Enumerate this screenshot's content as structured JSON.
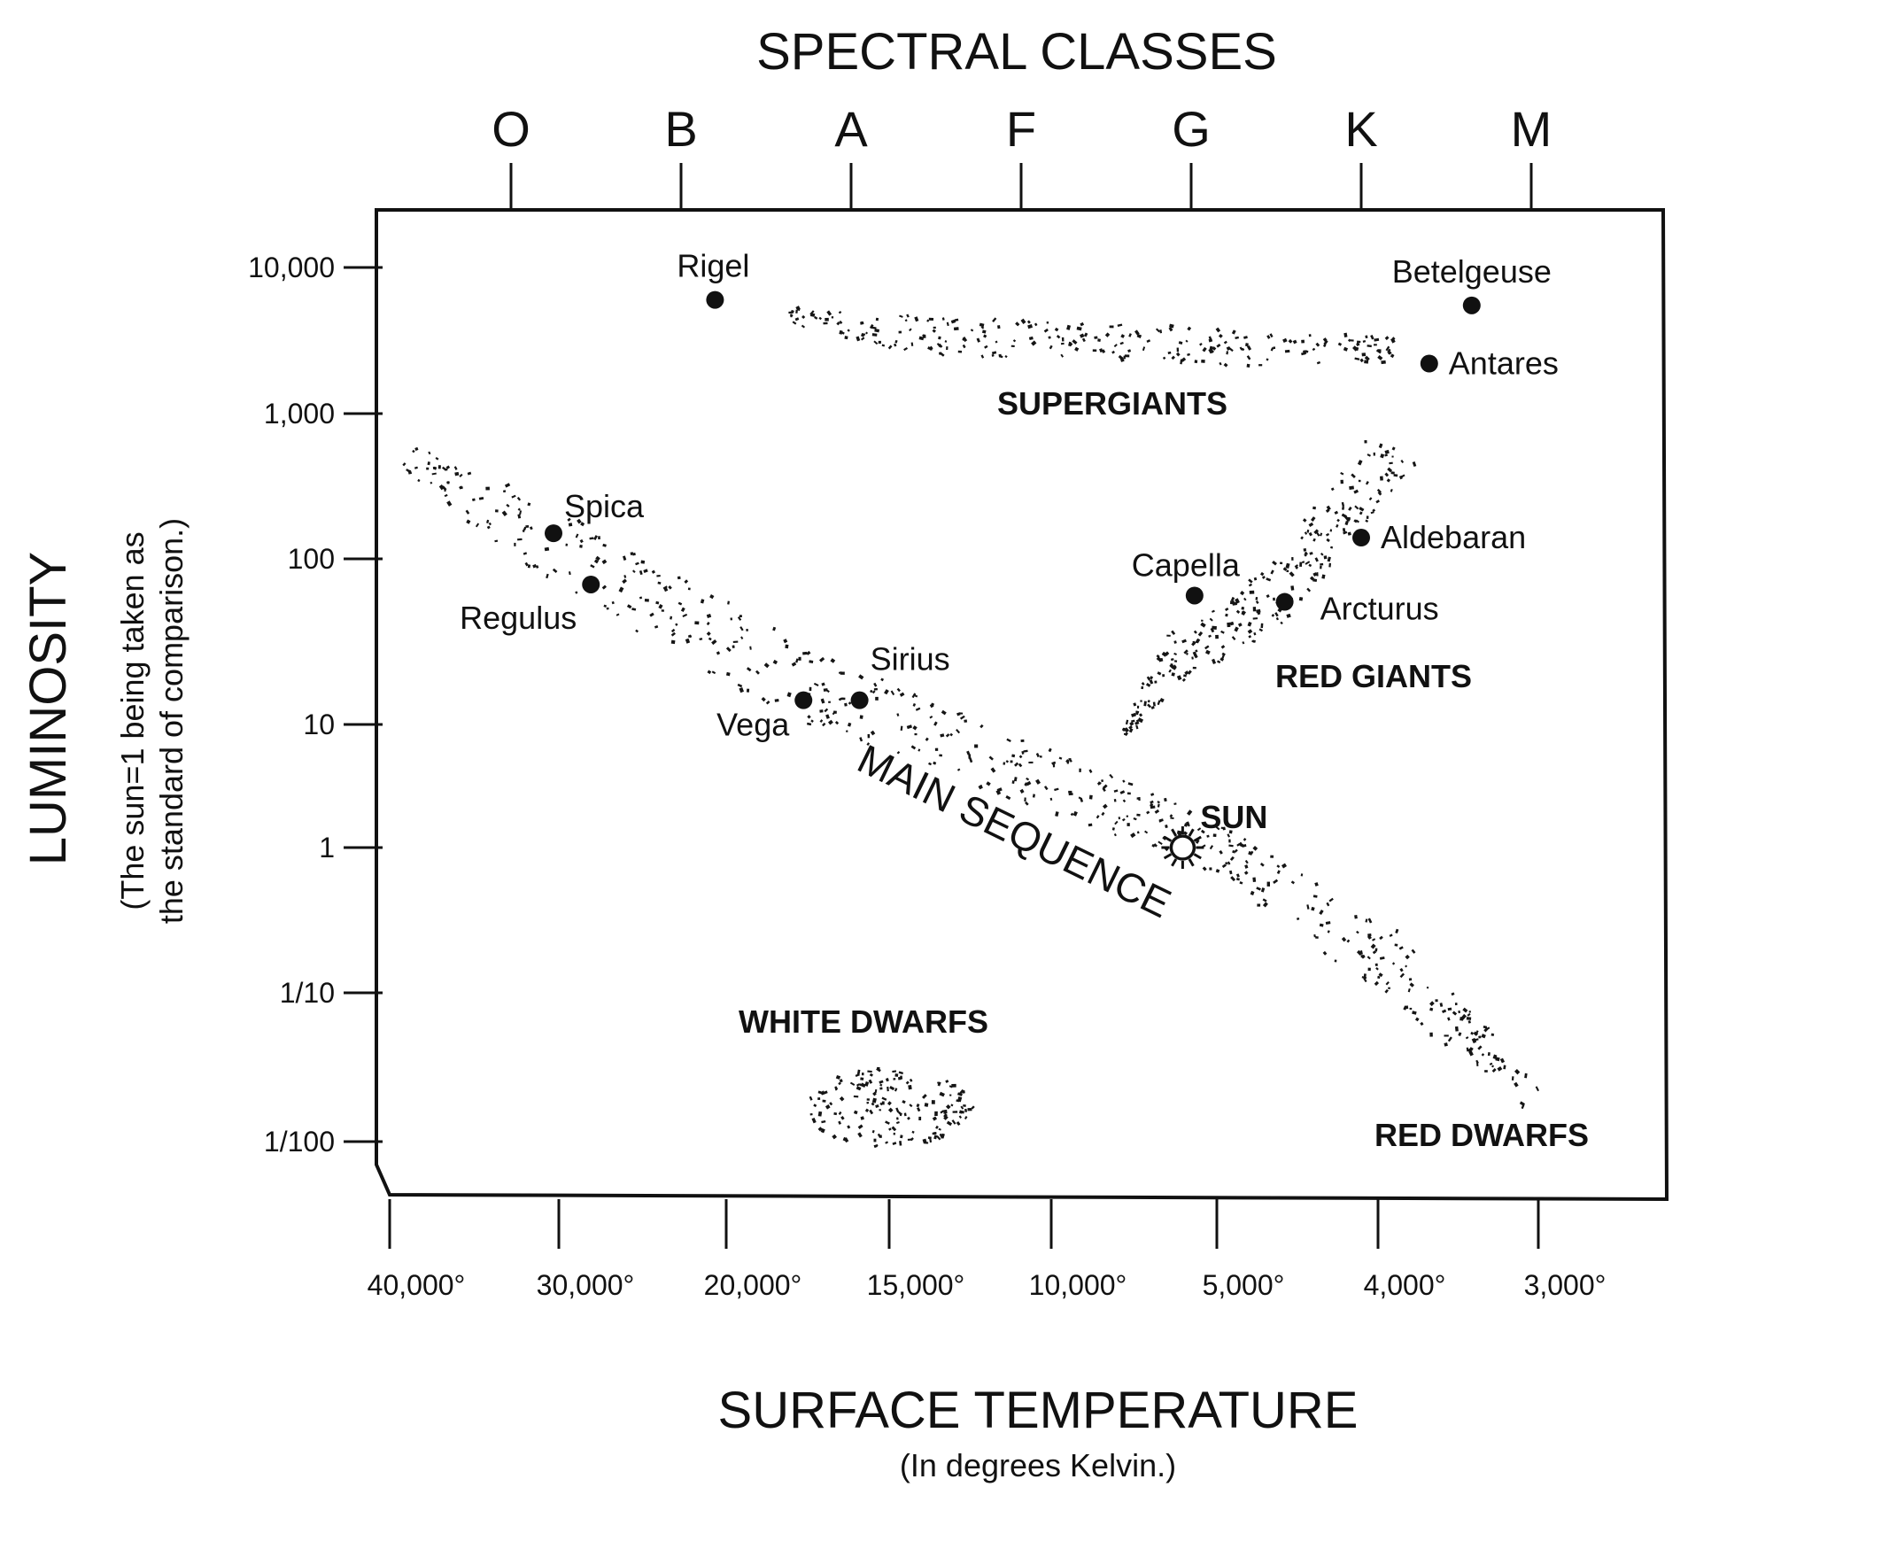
{
  "chart_data": {
    "type": "scatter",
    "title": "SPECTRAL CLASSES",
    "spectral_classes": [
      "O",
      "B",
      "A",
      "F",
      "G",
      "K",
      "M"
    ],
    "y_axis": {
      "label": "LUMINOSITY",
      "note_line1": "(The sun=1 being taken as",
      "note_line2": "the standard of comparison.)",
      "scale": "log",
      "ticks": [
        "10,000",
        "1,000",
        "100",
        "10",
        "1",
        "1/10",
        "1/100"
      ]
    },
    "x_axis": {
      "label": "SURFACE TEMPERATURE",
      "note": "(In degrees Kelvin.)",
      "direction": "decreasing to the right",
      "ticks": [
        "40,000°",
        "30,000°",
        "20,000°",
        "15,000°",
        "10,000°",
        "5,000°",
        "4,000°",
        "3,000°"
      ]
    },
    "regions": {
      "supergiants": "SUPERGIANTS",
      "red_giants": "RED GIANTS",
      "main_sequence": "MAIN SEQUENCE",
      "white_dwarfs": "WHITE DWARFS",
      "red_dwarfs": "RED DWARFS"
    },
    "stars": [
      {
        "name": "Rigel",
        "spectral_position": 1.2,
        "luminosity": 6000
      },
      {
        "name": "Betelgeuse",
        "spectral_position": 5.65,
        "luminosity": 5500
      },
      {
        "name": "Antares",
        "spectral_position": 5.4,
        "luminosity": 2200
      },
      {
        "name": "Spica",
        "spectral_position": 0.25,
        "luminosity": 150
      },
      {
        "name": "Regulus",
        "spectral_position": 0.47,
        "luminosity": 70
      },
      {
        "name": "Sirius",
        "spectral_position": 2.05,
        "luminosity": 14
      },
      {
        "name": "Vega",
        "spectral_position": 1.72,
        "luminosity": 14
      },
      {
        "name": "Capella",
        "spectral_position": 4.02,
        "luminosity": 60
      },
      {
        "name": "Arcturus",
        "spectral_position": 4.55,
        "luminosity": 55
      },
      {
        "name": "Aldebaran",
        "spectral_position": 5.0,
        "luminosity": 140
      },
      {
        "name": "SUN",
        "spectral_position": 3.95,
        "luminosity": 1
      }
    ]
  }
}
